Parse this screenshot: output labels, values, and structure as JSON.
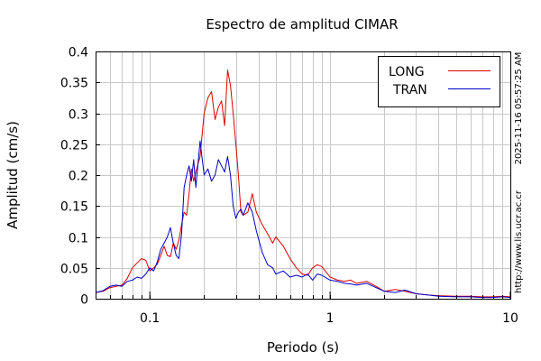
{
  "chart_data": {
    "type": "line",
    "title": "Espectro de amplitud CIMAR",
    "xlabel": "Periodo (s)",
    "ylabel": "Amplitud (cm/s)",
    "x_scale": "log",
    "xlim": [
      0.05,
      10
    ],
    "ylim": [
      0,
      0.4
    ],
    "x_ticks": [
      {
        "value": 0.1,
        "label": "0.1"
      },
      {
        "value": 1,
        "label": "1"
      },
      {
        "value": 10,
        "label": "10"
      }
    ],
    "y_ticks": [
      {
        "value": 0,
        "label": "0"
      },
      {
        "value": 0.05,
        "label": "0.05"
      },
      {
        "value": 0.1,
        "label": "0.1"
      },
      {
        "value": 0.15,
        "label": "0.15"
      },
      {
        "value": 0.2,
        "label": "0.2"
      },
      {
        "value": 0.25,
        "label": "0.25"
      },
      {
        "value": 0.3,
        "label": "0.3"
      },
      {
        "value": 0.35,
        "label": "0.35"
      },
      {
        "value": 0.4,
        "label": "0.4"
      }
    ],
    "grid": true,
    "legend_position": "top-right",
    "side_texts": [
      "2025-11-16 05:57:25 AM",
      "http://www.lis.ucr.ac.cr"
    ],
    "series": [
      {
        "name": "LONG",
        "color": "#dd0000",
        "x": [
          0.05,
          0.055,
          0.06,
          0.065,
          0.07,
          0.075,
          0.08,
          0.085,
          0.09,
          0.095,
          0.1,
          0.105,
          0.11,
          0.115,
          0.12,
          0.125,
          0.13,
          0.135,
          0.14,
          0.145,
          0.15,
          0.155,
          0.16,
          0.165,
          0.17,
          0.175,
          0.18,
          0.19,
          0.2,
          0.21,
          0.22,
          0.23,
          0.24,
          0.25,
          0.26,
          0.27,
          0.28,
          0.29,
          0.3,
          0.31,
          0.32,
          0.33,
          0.35,
          0.37,
          0.39,
          0.42,
          0.45,
          0.48,
          0.5,
          0.55,
          0.6,
          0.65,
          0.7,
          0.75,
          0.8,
          0.85,
          0.9,
          1.0,
          1.1,
          1.2,
          1.3,
          1.4,
          1.6,
          1.8,
          2.0,
          2.3,
          2.6,
          3.0,
          3.5,
          4.0,
          5.0,
          6.0,
          7.0,
          8.0,
          9.0,
          10.0
        ],
        "values": [
          0.01,
          0.012,
          0.018,
          0.02,
          0.022,
          0.033,
          0.05,
          0.058,
          0.065,
          0.062,
          0.045,
          0.05,
          0.056,
          0.07,
          0.085,
          0.07,
          0.068,
          0.09,
          0.08,
          0.095,
          0.12,
          0.14,
          0.135,
          0.17,
          0.21,
          0.19,
          0.205,
          0.23,
          0.3,
          0.325,
          0.335,
          0.29,
          0.31,
          0.32,
          0.28,
          0.37,
          0.345,
          0.3,
          0.25,
          0.2,
          0.14,
          0.135,
          0.14,
          0.17,
          0.14,
          0.12,
          0.105,
          0.09,
          0.1,
          0.085,
          0.065,
          0.05,
          0.04,
          0.038,
          0.05,
          0.055,
          0.052,
          0.035,
          0.03,
          0.028,
          0.03,
          0.025,
          0.028,
          0.02,
          0.012,
          0.015,
          0.012,
          0.008,
          0.006,
          0.005,
          0.004,
          0.004,
          0.003,
          0.003,
          0.004,
          0.003
        ]
      },
      {
        "name": "TRAN",
        "color": "#0000cc",
        "x": [
          0.05,
          0.055,
          0.06,
          0.065,
          0.07,
          0.075,
          0.08,
          0.085,
          0.09,
          0.095,
          0.1,
          0.105,
          0.11,
          0.115,
          0.12,
          0.125,
          0.13,
          0.135,
          0.14,
          0.145,
          0.15,
          0.155,
          0.16,
          0.165,
          0.17,
          0.175,
          0.18,
          0.19,
          0.2,
          0.21,
          0.22,
          0.23,
          0.24,
          0.25,
          0.26,
          0.27,
          0.28,
          0.29,
          0.3,
          0.31,
          0.32,
          0.33,
          0.35,
          0.37,
          0.39,
          0.42,
          0.45,
          0.48,
          0.5,
          0.55,
          0.6,
          0.65,
          0.7,
          0.75,
          0.8,
          0.85,
          0.9,
          1.0,
          1.1,
          1.2,
          1.3,
          1.4,
          1.6,
          1.8,
          2.0,
          2.3,
          2.6,
          3.0,
          3.5,
          4.0,
          5.0,
          6.0,
          7.0,
          8.0,
          9.0,
          10.0
        ],
        "values": [
          0.01,
          0.013,
          0.02,
          0.022,
          0.02,
          0.028,
          0.03,
          0.035,
          0.033,
          0.04,
          0.05,
          0.045,
          0.06,
          0.08,
          0.09,
          0.1,
          0.115,
          0.09,
          0.07,
          0.065,
          0.105,
          0.18,
          0.2,
          0.215,
          0.19,
          0.225,
          0.18,
          0.255,
          0.2,
          0.21,
          0.19,
          0.2,
          0.225,
          0.215,
          0.205,
          0.23,
          0.2,
          0.15,
          0.13,
          0.14,
          0.145,
          0.135,
          0.155,
          0.14,
          0.11,
          0.075,
          0.055,
          0.05,
          0.04,
          0.045,
          0.035,
          0.038,
          0.035,
          0.04,
          0.03,
          0.04,
          0.038,
          0.03,
          0.028,
          0.025,
          0.024,
          0.022,
          0.025,
          0.018,
          0.012,
          0.01,
          0.014,
          0.008,
          0.006,
          0.004,
          0.003,
          0.003,
          0.002,
          0.002,
          0.003,
          0.002
        ]
      }
    ]
  }
}
